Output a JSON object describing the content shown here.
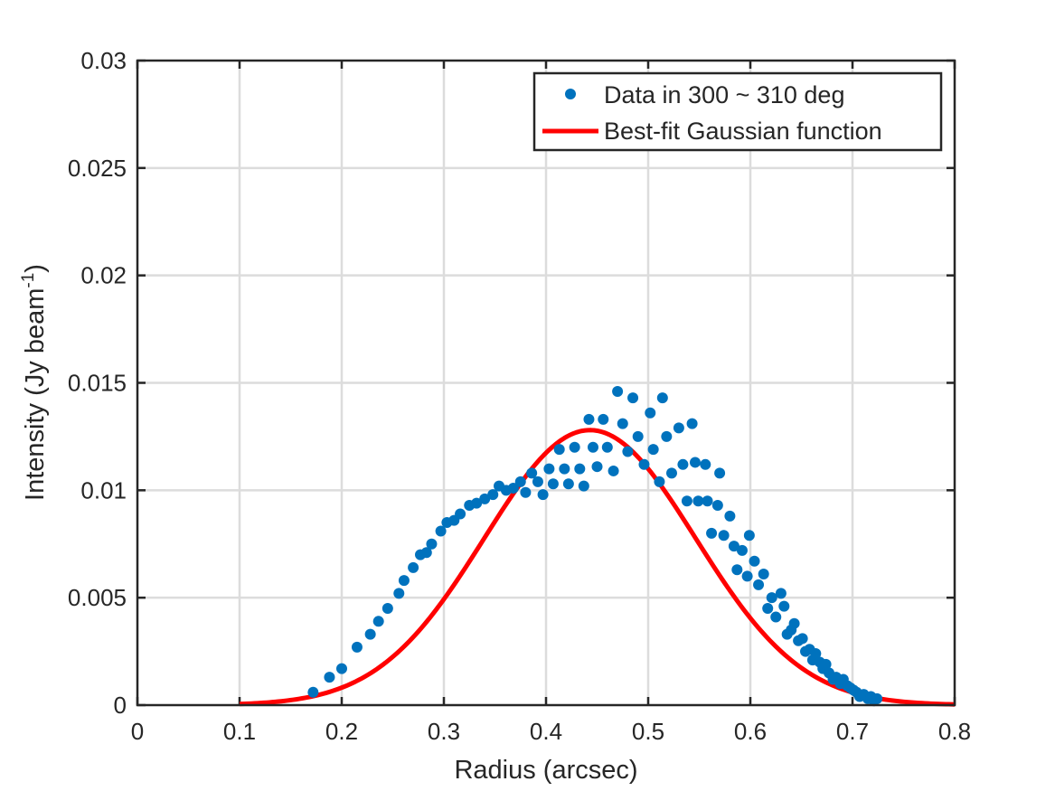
{
  "chart_data": {
    "type": "scatter",
    "title": "",
    "xlabel": "Radius (arcsec)",
    "ylabel_main": "Intensity (Jy beam",
    "ylabel_sup": "-1",
    "ylabel_close": ")",
    "xlim": [
      0,
      0.8
    ],
    "ylim": [
      0,
      0.03
    ],
    "xticks": [
      0,
      0.1,
      0.2,
      0.3,
      0.4,
      0.5,
      0.6,
      0.7,
      0.8
    ],
    "xtick_labels": [
      "0",
      "0.1",
      "0.2",
      "0.3",
      "0.4",
      "0.5",
      "0.6",
      "0.7",
      "0.8"
    ],
    "yticks": [
      0,
      0.005,
      0.01,
      0.015,
      0.02,
      0.025,
      0.03
    ],
    "ytick_labels": [
      "0",
      "0.005",
      "0.01",
      "0.015",
      "0.02",
      "0.025",
      "0.03"
    ],
    "grid": true,
    "legend_position": "top-right",
    "series": [
      {
        "name": "Data in 300 ~ 310 deg",
        "kind": "scatter",
        "color": "#0072BD",
        "points": [
          [
            0.172,
            0.0006
          ],
          [
            0.188,
            0.0013
          ],
          [
            0.2,
            0.0017
          ],
          [
            0.215,
            0.0027
          ],
          [
            0.228,
            0.0033
          ],
          [
            0.236,
            0.0039
          ],
          [
            0.245,
            0.0045
          ],
          [
            0.256,
            0.0052
          ],
          [
            0.261,
            0.0058
          ],
          [
            0.27,
            0.0064
          ],
          [
            0.277,
            0.007
          ],
          [
            0.283,
            0.0071
          ],
          [
            0.288,
            0.0075
          ],
          [
            0.297,
            0.0081
          ],
          [
            0.303,
            0.0085
          ],
          [
            0.31,
            0.0086
          ],
          [
            0.316,
            0.0089
          ],
          [
            0.325,
            0.0093
          ],
          [
            0.332,
            0.0094
          ],
          [
            0.34,
            0.0096
          ],
          [
            0.348,
            0.0098
          ],
          [
            0.354,
            0.0102
          ],
          [
            0.361,
            0.01
          ],
          [
            0.368,
            0.0101
          ],
          [
            0.375,
            0.0104
          ],
          [
            0.38,
            0.0099
          ],
          [
            0.386,
            0.0108
          ],
          [
            0.392,
            0.0104
          ],
          [
            0.397,
            0.0098
          ],
          [
            0.403,
            0.011
          ],
          [
            0.407,
            0.0103
          ],
          [
            0.413,
            0.0119
          ],
          [
            0.418,
            0.011
          ],
          [
            0.422,
            0.0103
          ],
          [
            0.428,
            0.012
          ],
          [
            0.433,
            0.011
          ],
          [
            0.437,
            0.0102
          ],
          [
            0.442,
            0.0133
          ],
          [
            0.446,
            0.012
          ],
          [
            0.45,
            0.0111
          ],
          [
            0.456,
            0.0133
          ],
          [
            0.46,
            0.012
          ],
          [
            0.466,
            0.0109
          ],
          [
            0.47,
            0.0146
          ],
          [
            0.475,
            0.0131
          ],
          [
            0.48,
            0.0118
          ],
          [
            0.485,
            0.0143
          ],
          [
            0.49,
            0.0125
          ],
          [
            0.496,
            0.0112
          ],
          [
            0.502,
            0.0136
          ],
          [
            0.505,
            0.0119
          ],
          [
            0.511,
            0.0104
          ],
          [
            0.514,
            0.0143
          ],
          [
            0.518,
            0.0125
          ],
          [
            0.523,
            0.0108
          ],
          [
            0.53,
            0.0129
          ],
          [
            0.534,
            0.0112
          ],
          [
            0.538,
            0.0095
          ],
          [
            0.543,
            0.0131
          ],
          [
            0.546,
            0.0113
          ],
          [
            0.549,
            0.0095
          ],
          [
            0.556,
            0.0112
          ],
          [
            0.558,
            0.0095
          ],
          [
            0.562,
            0.008
          ],
          [
            0.568,
            0.0093
          ],
          [
            0.57,
            0.0108
          ],
          [
            0.574,
            0.0079
          ],
          [
            0.58,
            0.0088
          ],
          [
            0.584,
            0.0074
          ],
          [
            0.587,
            0.0063
          ],
          [
            0.592,
            0.0072
          ],
          [
            0.597,
            0.006
          ],
          [
            0.599,
            0.0079
          ],
          [
            0.604,
            0.0067
          ],
          [
            0.608,
            0.0056
          ],
          [
            0.613,
            0.0061
          ],
          [
            0.617,
            0.0045
          ],
          [
            0.621,
            0.005
          ],
          [
            0.625,
            0.0041
          ],
          [
            0.63,
            0.0052
          ],
          [
            0.633,
            0.0046
          ],
          [
            0.636,
            0.0033
          ],
          [
            0.64,
            0.0035
          ],
          [
            0.643,
            0.0038
          ],
          [
            0.647,
            0.003
          ],
          [
            0.651,
            0.0031
          ],
          [
            0.654,
            0.0025
          ],
          [
            0.658,
            0.0026
          ],
          [
            0.661,
            0.0021
          ],
          [
            0.664,
            0.0024
          ],
          [
            0.668,
            0.002
          ],
          [
            0.671,
            0.0017
          ],
          [
            0.674,
            0.0019
          ],
          [
            0.677,
            0.0015
          ],
          [
            0.681,
            0.0012
          ],
          [
            0.684,
            0.0013
          ],
          [
            0.688,
            0.001
          ],
          [
            0.691,
            0.0012
          ],
          [
            0.695,
            0.0009
          ],
          [
            0.698,
            0.0008
          ],
          [
            0.701,
            0.0007
          ],
          [
            0.704,
            0.0006
          ],
          [
            0.707,
            0.0004
          ],
          [
            0.711,
            0.0005
          ],
          [
            0.715,
            0.0003
          ],
          [
            0.718,
            0.0004
          ],
          [
            0.721,
            0.0002
          ],
          [
            0.724,
            0.0003
          ]
        ]
      },
      {
        "name": "Best-fit Gaussian function",
        "kind": "line",
        "color": "#FF0000",
        "function": "gaussian",
        "amplitude": 0.0128,
        "center": 0.443,
        "sigma": 0.1035,
        "x_range": [
          0.1,
          0.8
        ]
      }
    ]
  }
}
